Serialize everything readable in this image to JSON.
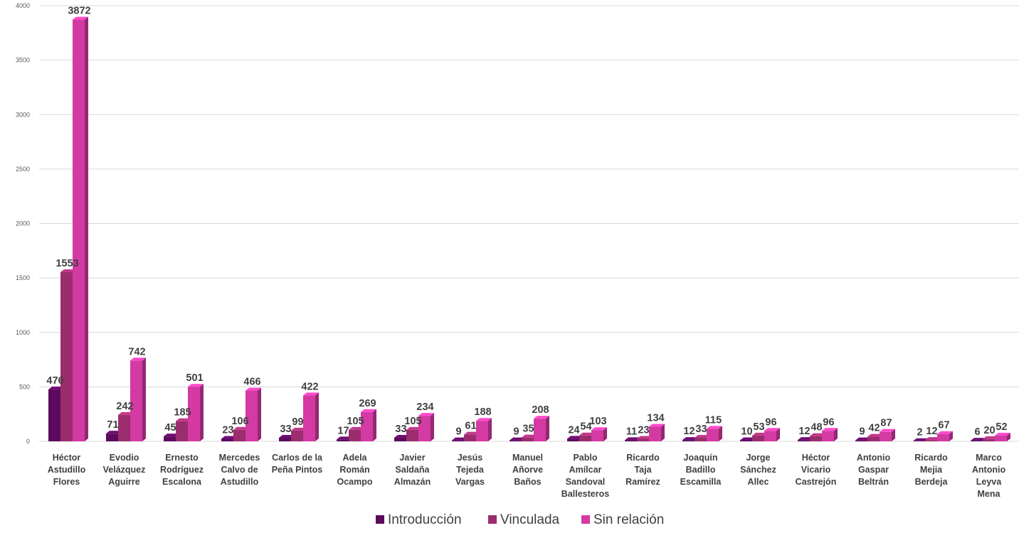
{
  "chart_data": {
    "type": "bar",
    "categories": [
      "Héctor Astudillo Flores",
      "Evodio Velázquez Aguirre",
      "Ernesto Rodríguez Escalona",
      "Mercedes Calvo de Astudillo",
      "Carlos de la Peña Pintos",
      "Adela Román Ocampo",
      "Javier Saldaña Almazán",
      "Jesús Tejeda Vargas",
      "Manuel Añorve Baños",
      "Pablo Amílcar Sandoval Ballesteros",
      "Ricardo Taja Ramírez",
      "Joaquín Badillo Escamilla",
      "Jorge Sánchez Allec",
      "Héctor Vicario Castrejón",
      "Antonio Gaspar Beltrán",
      "Ricardo Mejia Berdeja",
      "Marco Antonio Leyva Mena"
    ],
    "category_lines": [
      [
        "Héctor",
        "Astudillo",
        "Flores"
      ],
      [
        "Evodio",
        "Velázquez",
        "Aguirre"
      ],
      [
        "Ernesto",
        "Rodríguez",
        "Escalona"
      ],
      [
        "Mercedes",
        "Calvo de",
        "Astudillo"
      ],
      [
        "Carlos de la",
        "Peña Pintos"
      ],
      [
        "Adela",
        "Román",
        "Ocampo"
      ],
      [
        "Javier",
        "Saldaña",
        "Almazán"
      ],
      [
        "Jesús",
        "Tejeda",
        "Vargas"
      ],
      [
        "Manuel",
        "Añorve",
        "Baños"
      ],
      [
        "Pablo",
        "Amílcar",
        "Sandoval",
        "Ballesteros"
      ],
      [
        "Ricardo",
        "Taja",
        "Ramírez"
      ],
      [
        "Joaquín",
        "Badillo",
        "Escamilla"
      ],
      [
        "Jorge",
        "Sánchez",
        "Allec"
      ],
      [
        "Héctor",
        "Vicario",
        "Castrejón"
      ],
      [
        "Antonio",
        "Gaspar",
        "Beltrán"
      ],
      [
        "Ricardo",
        "Mejia",
        "Berdeja"
      ],
      [
        "Marco",
        "Antonio",
        "Leyva",
        "Mena"
      ]
    ],
    "series": [
      {
        "name": "Introducción",
        "color": "#5c0a5e",
        "values": [
          476,
          71,
          45,
          23,
          33,
          17,
          33,
          9,
          9,
          24,
          11,
          12,
          10,
          12,
          9,
          2,
          6
        ]
      },
      {
        "name": "Vinculada",
        "color": "#9b2d6e",
        "values": [
          1553,
          242,
          185,
          106,
          99,
          105,
          105,
          61,
          35,
          54,
          23,
          33,
          53,
          48,
          42,
          12,
          20
        ]
      },
      {
        "name": "Sin relación",
        "color": "#d43aa3",
        "values": [
          3872,
          742,
          501,
          466,
          422,
          269,
          234,
          188,
          208,
          103,
          134,
          115,
          96,
          96,
          87,
          67,
          52
        ]
      }
    ],
    "ylim": [
      0,
      4000
    ],
    "yticks": [
      0,
      500,
      1000,
      1500,
      2000,
      2500,
      3000,
      3500,
      4000
    ],
    "grid": true,
    "legend_position": "bottom",
    "title": "",
    "xlabel": "",
    "ylabel": ""
  }
}
